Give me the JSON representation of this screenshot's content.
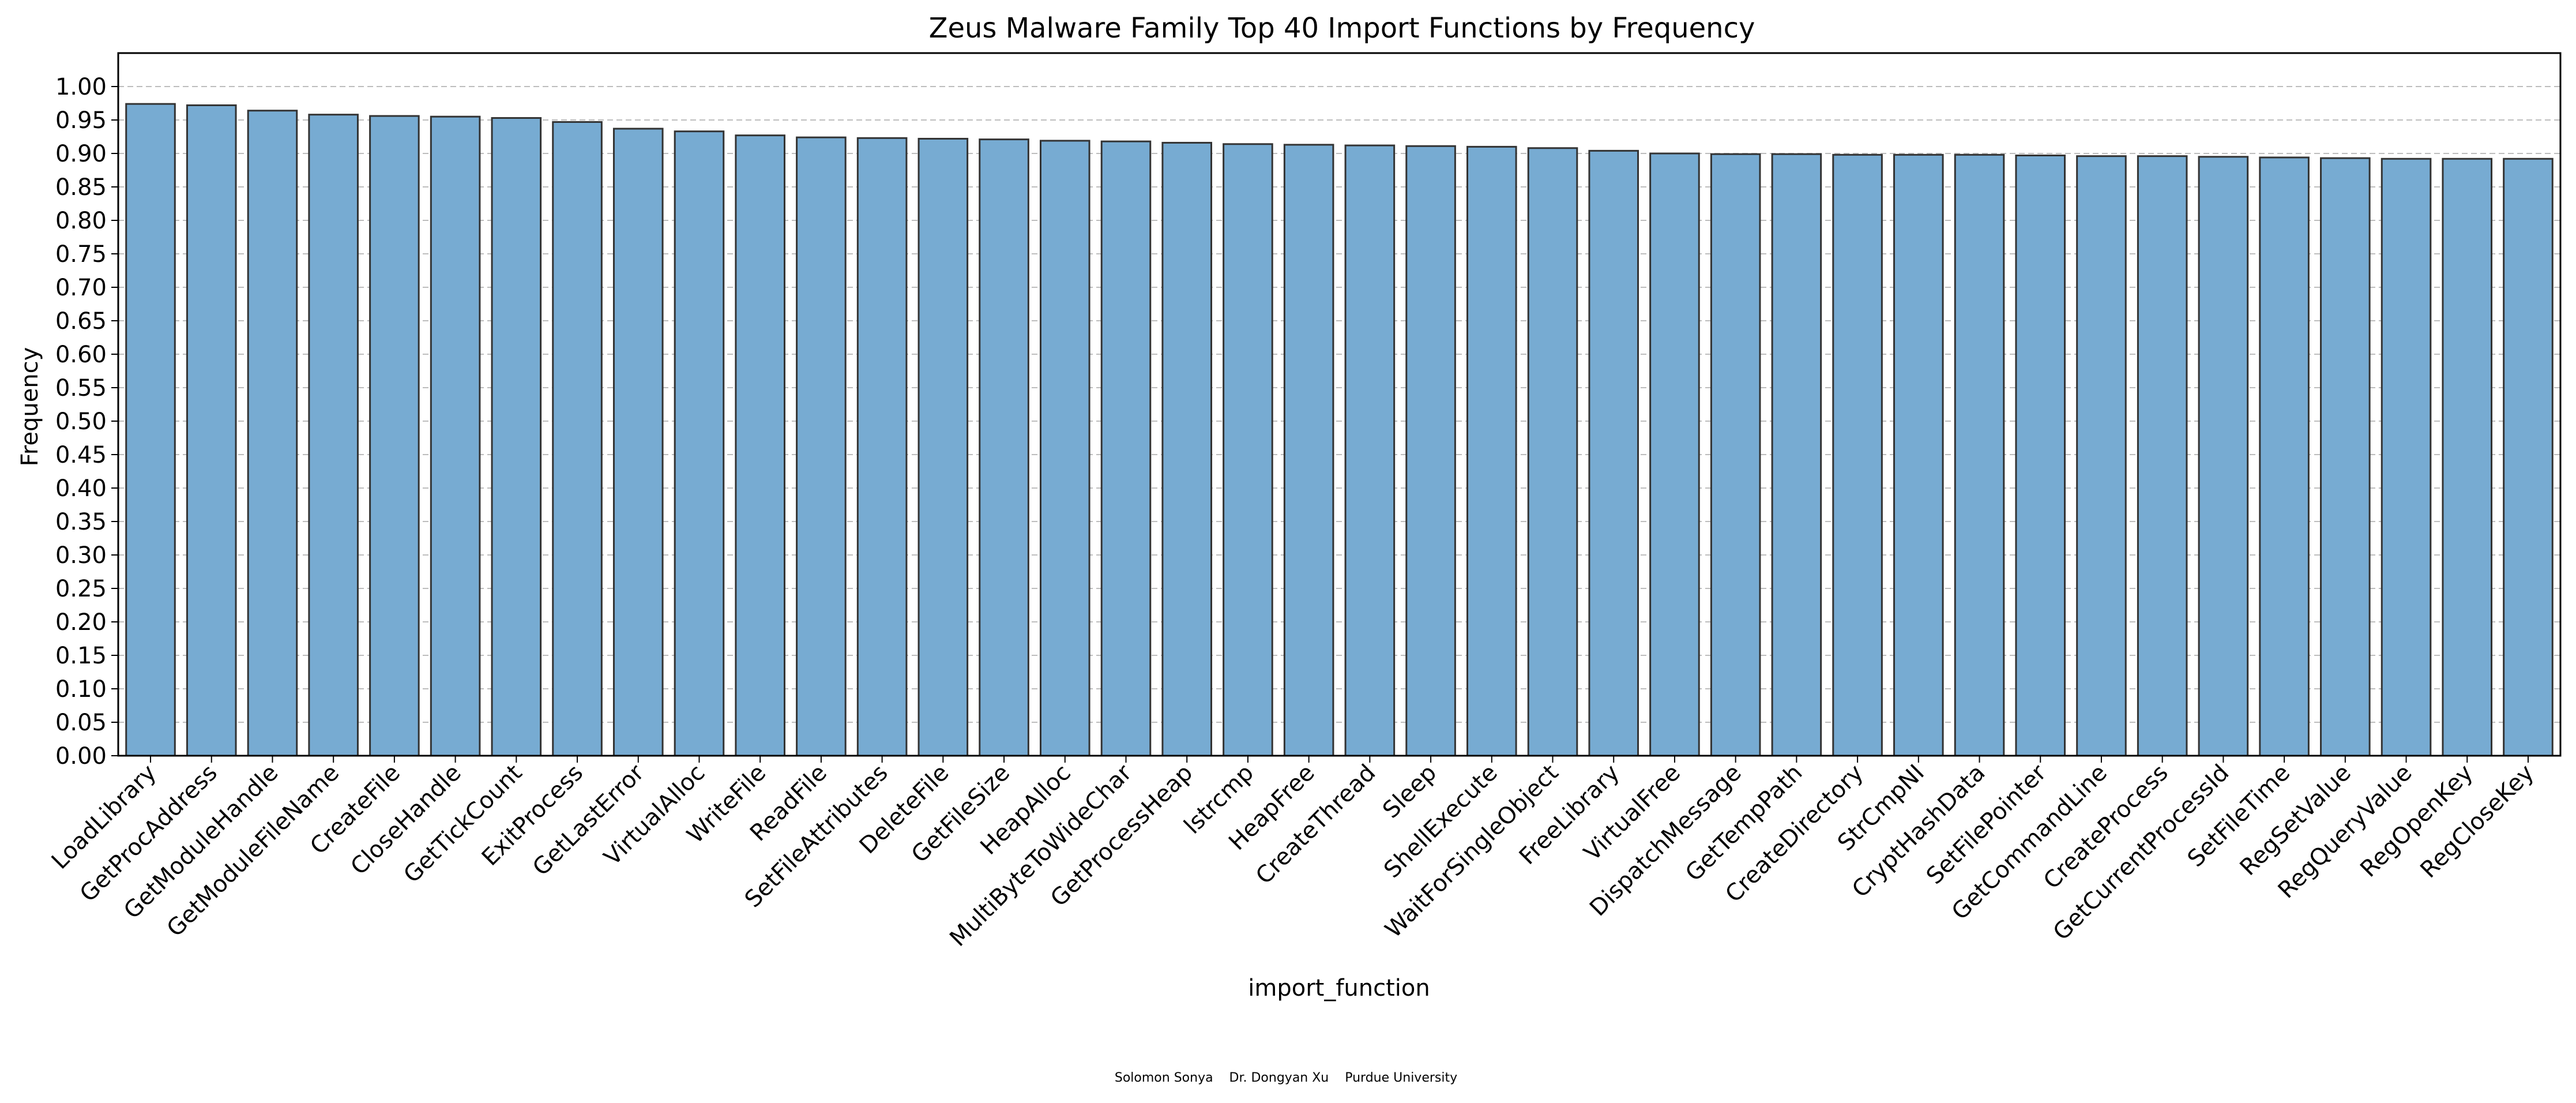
{
  "chart_data": {
    "type": "bar",
    "title": "Zeus Malware Family Top 40 Import Functions by Frequency",
    "xlabel": "import_function",
    "ylabel": "Frequency",
    "ylim": [
      0,
      1.0
    ],
    "ytick_step": 0.05,
    "grid": "y-dashed",
    "bar_color": "#77abd2",
    "bar_edge_color": "#333333",
    "categories": [
      "LoadLibrary",
      "GetProcAddress",
      "GetModuleHandle",
      "GetModuleFileName",
      "CreateFile",
      "CloseHandle",
      "GetTickCount",
      "ExitProcess",
      "GetLastError",
      "VirtualAlloc",
      "WriteFile",
      "ReadFile",
      "SetFileAttributes",
      "DeleteFile",
      "GetFileSize",
      "HeapAlloc",
      "MultiByteToWideChar",
      "GetProcessHeap",
      "lstrcmp",
      "HeapFree",
      "CreateThread",
      "Sleep",
      "ShellExecute",
      "WaitForSingleObject",
      "FreeLibrary",
      "VirtualFree",
      "DispatchMessage",
      "GetTempPath",
      "CreateDirectory",
      "StrCmpNI",
      "CryptHashData",
      "SetFilePointer",
      "GetCommandLine",
      "CreateProcess",
      "GetCurrentProcessId",
      "SetFileTime",
      "RegSetValue",
      "RegQueryValue",
      "RegOpenKey",
      "RegCloseKey"
    ],
    "values": [
      0.974,
      0.972,
      0.964,
      0.958,
      0.956,
      0.955,
      0.953,
      0.947,
      0.937,
      0.933,
      0.927,
      0.924,
      0.923,
      0.922,
      0.921,
      0.919,
      0.918,
      0.916,
      0.914,
      0.913,
      0.912,
      0.911,
      0.91,
      0.908,
      0.904,
      0.9,
      0.899,
      0.899,
      0.898,
      0.898,
      0.898,
      0.897,
      0.896,
      0.896,
      0.895,
      0.894,
      0.893,
      0.892,
      0.892,
      0.892
    ]
  },
  "footer": {
    "text": "Solomon Sonya    Dr. Dongyan Xu    Purdue University"
  }
}
